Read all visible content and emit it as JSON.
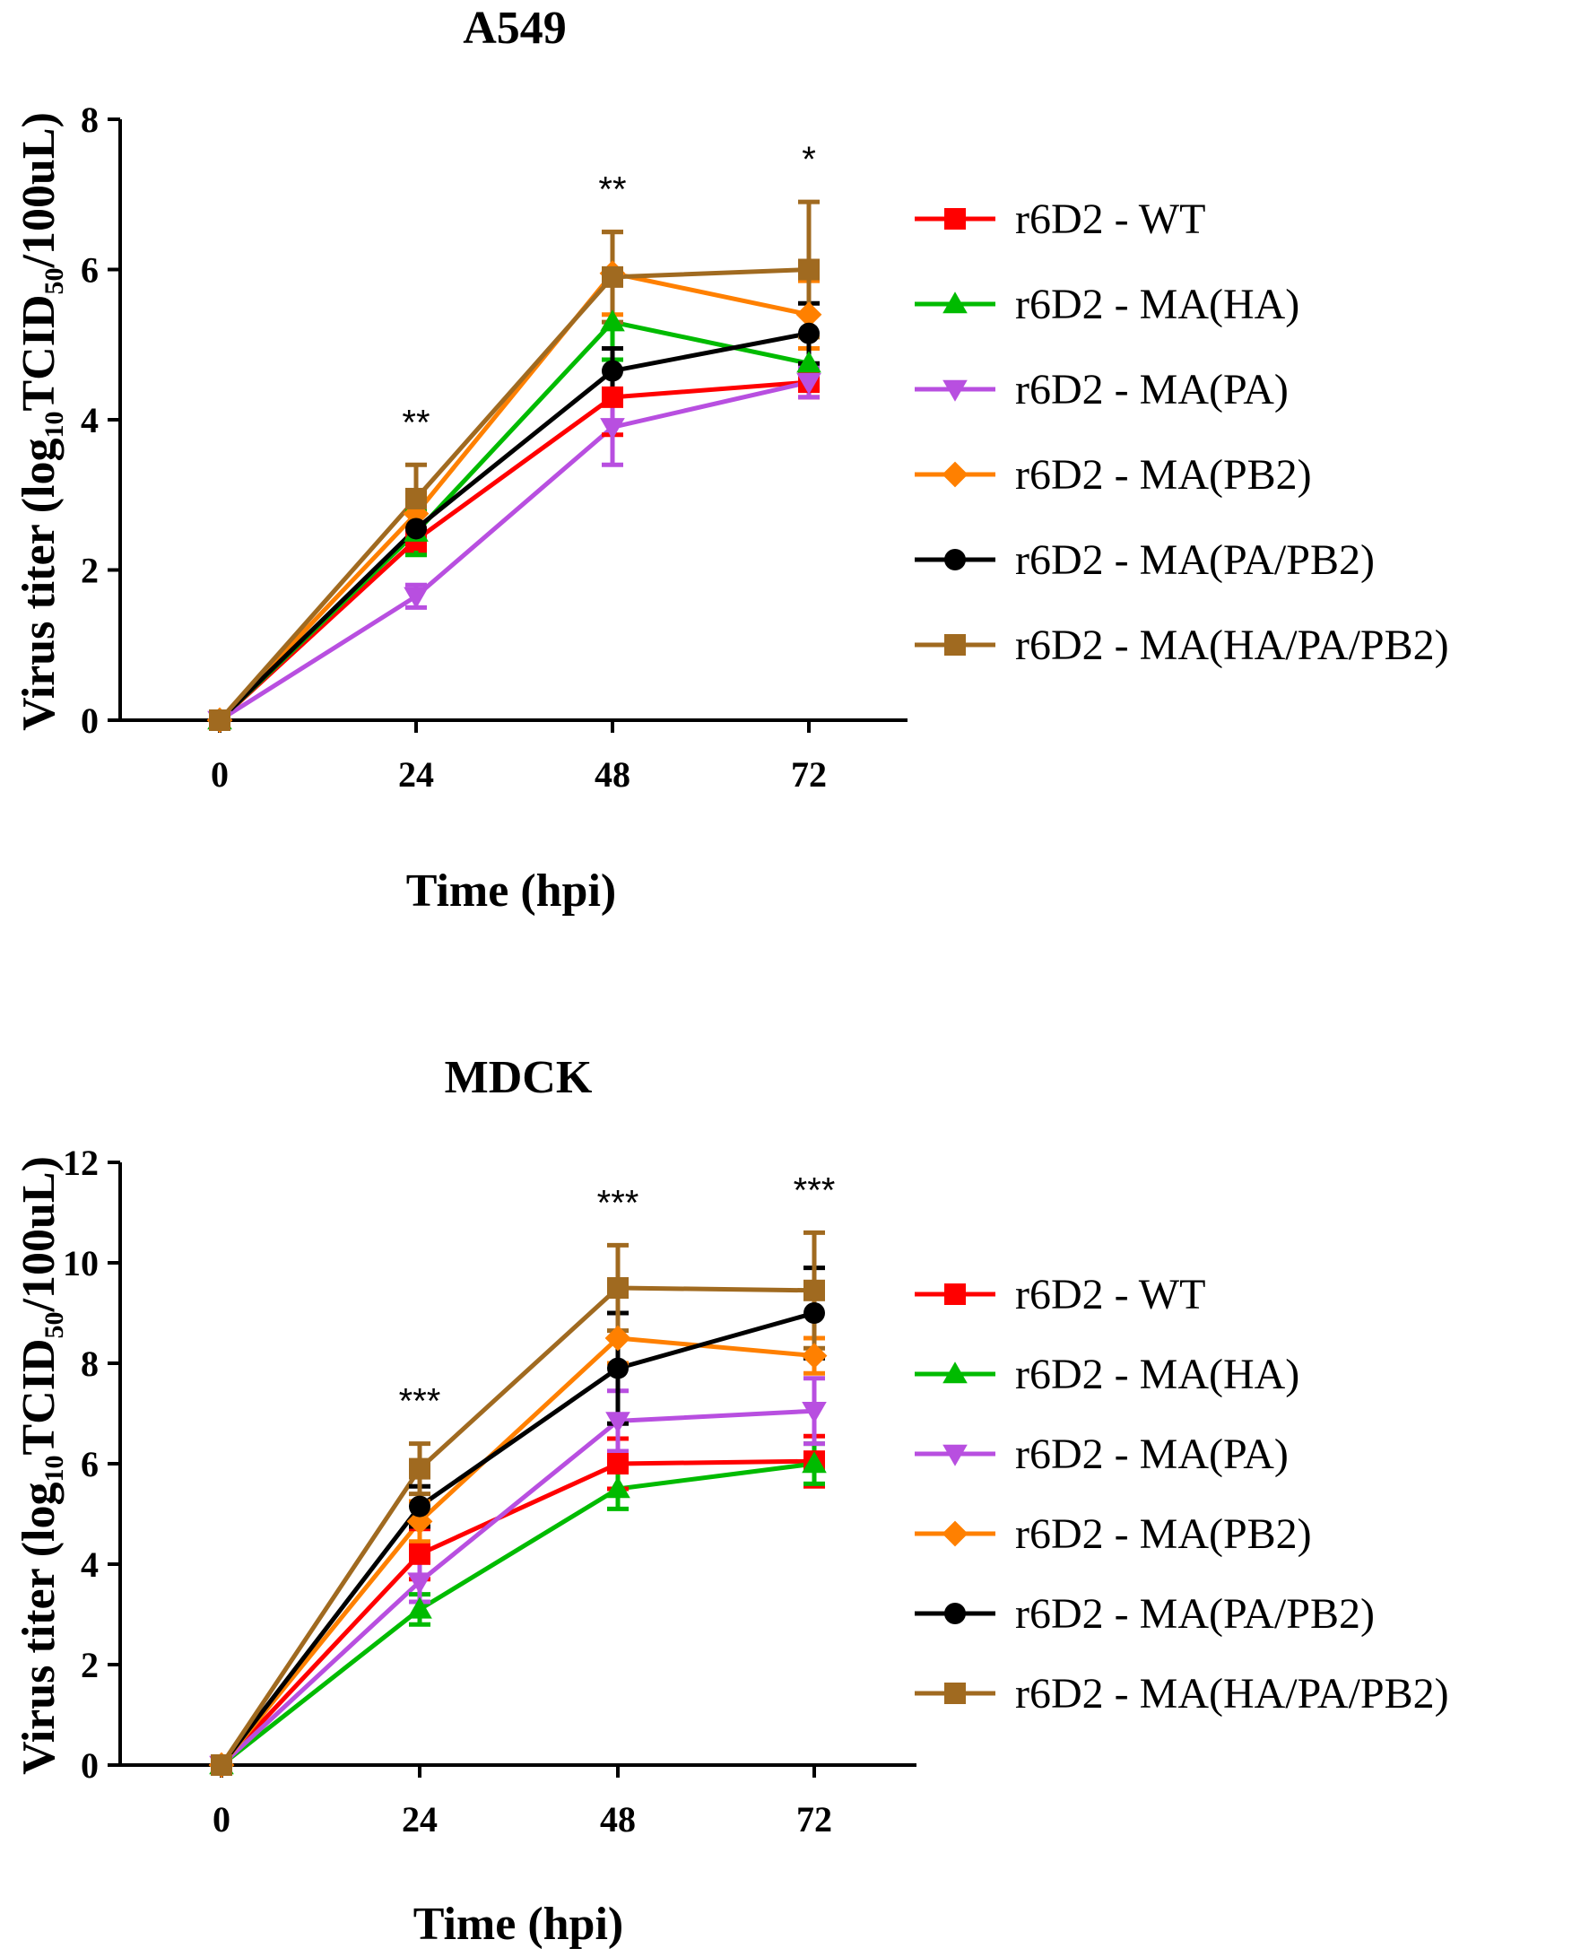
{
  "chart_data": [
    {
      "type": "line",
      "title": "A549",
      "xlabel": "Time (hpi)",
      "ylabel": "Virus titer (log10TCID50/100uL)",
      "ylabel_parts": [
        "Virus titer (log",
        "10",
        "TCID",
        "50",
        "/100uL)"
      ],
      "x": [
        0,
        24,
        48,
        72
      ],
      "x_ticks": [
        "0",
        "24",
        "48",
        "72"
      ],
      "y_ticks": [
        "0",
        "2",
        "4",
        "6",
        "8"
      ],
      "ylim": [
        0,
        8
      ],
      "significance": [
        {
          "x": 24,
          "label": "**"
        },
        {
          "x": 48,
          "label": "**"
        },
        {
          "x": 72,
          "label": "*"
        }
      ],
      "series": [
        {
          "name": "r6D2 - WT",
          "color": "#ff0000",
          "marker": "square",
          "values": [
            0,
            2.4,
            4.3,
            4.5
          ],
          "errors": [
            0,
            0.15,
            0.5,
            0.2
          ]
        },
        {
          "name": "r6D2 - MA(HA)",
          "color": "#00bb00",
          "marker": "triangle-up",
          "values": [
            0,
            2.5,
            5.3,
            4.75
          ],
          "errors": [
            0,
            0.3,
            0.5,
            0.2
          ]
        },
        {
          "name": "r6D2 - MA(PA)",
          "color": "#b84fe0",
          "marker": "triangle-down",
          "values": [
            0,
            1.65,
            3.9,
            4.5
          ],
          "errors": [
            0,
            0.15,
            0.5,
            0.2
          ]
        },
        {
          "name": "r6D2 - MA(PB2)",
          "color": "#ff8000",
          "marker": "diamond",
          "values": [
            0,
            2.75,
            5.95,
            5.4
          ],
          "errors": [
            0,
            0.3,
            0.55,
            0.45
          ]
        },
        {
          "name": "r6D2 - MA(PA/PB2)",
          "color": "#000000",
          "marker": "circle",
          "values": [
            0,
            2.55,
            4.65,
            5.15
          ],
          "errors": [
            0,
            0.2,
            0.3,
            0.4
          ]
        },
        {
          "name": "r6D2 - MA(HA/PA/PB2)",
          "color": "#a06a20",
          "marker": "square",
          "values": [
            0,
            2.95,
            5.9,
            6.0
          ],
          "errors": [
            0,
            0.45,
            0.6,
            0.9
          ]
        }
      ]
    },
    {
      "type": "line",
      "title": "MDCK",
      "xlabel": "Time (hpi)",
      "ylabel": "Virus titer (log10TCID50/100uL)",
      "ylabel_parts": [
        "Virus titer (log",
        "10",
        "TCID",
        "50",
        "/100uL)"
      ],
      "x": [
        0,
        24,
        48,
        72
      ],
      "x_ticks": [
        "0",
        "24",
        "48",
        "72"
      ],
      "y_ticks": [
        "0",
        "2",
        "4",
        "6",
        "8",
        "10",
        "12"
      ],
      "ylim": [
        0,
        12
      ],
      "significance": [
        {
          "x": 24,
          "label": "***"
        },
        {
          "x": 48,
          "label": "***"
        },
        {
          "x": 72,
          "label": "***"
        }
      ],
      "series": [
        {
          "name": "r6D2 - WT",
          "color": "#ff0000",
          "marker": "square",
          "values": [
            0,
            4.2,
            6.0,
            6.05
          ],
          "errors": [
            0,
            0.5,
            0.5,
            0.5
          ]
        },
        {
          "name": "r6D2 - MA(HA)",
          "color": "#00bb00",
          "marker": "triangle-up",
          "values": [
            0,
            3.1,
            5.5,
            6.0
          ],
          "errors": [
            0,
            0.3,
            0.4,
            0.4
          ]
        },
        {
          "name": "r6D2 - MA(PA)",
          "color": "#b84fe0",
          "marker": "triangle-down",
          "values": [
            0,
            3.65,
            6.85,
            7.05
          ],
          "errors": [
            0,
            0.4,
            0.6,
            0.65
          ]
        },
        {
          "name": "r6D2 - MA(PB2)",
          "color": "#ff8000",
          "marker": "diamond",
          "values": [
            0,
            4.85,
            8.5,
            8.15
          ],
          "errors": [
            0,
            0.4,
            0.5,
            0.35
          ]
        },
        {
          "name": "r6D2 - MA(PA/PB2)",
          "color": "#000000",
          "marker": "circle",
          "values": [
            0,
            5.15,
            7.9,
            9.0
          ],
          "errors": [
            0,
            0.4,
            1.1,
            0.9
          ]
        },
        {
          "name": "r6D2 - MA(HA/PA/PB2)",
          "color": "#a06a20",
          "marker": "square",
          "values": [
            0,
            5.9,
            9.5,
            9.45
          ],
          "errors": [
            0,
            0.5,
            0.85,
            1.15
          ]
        }
      ]
    }
  ]
}
